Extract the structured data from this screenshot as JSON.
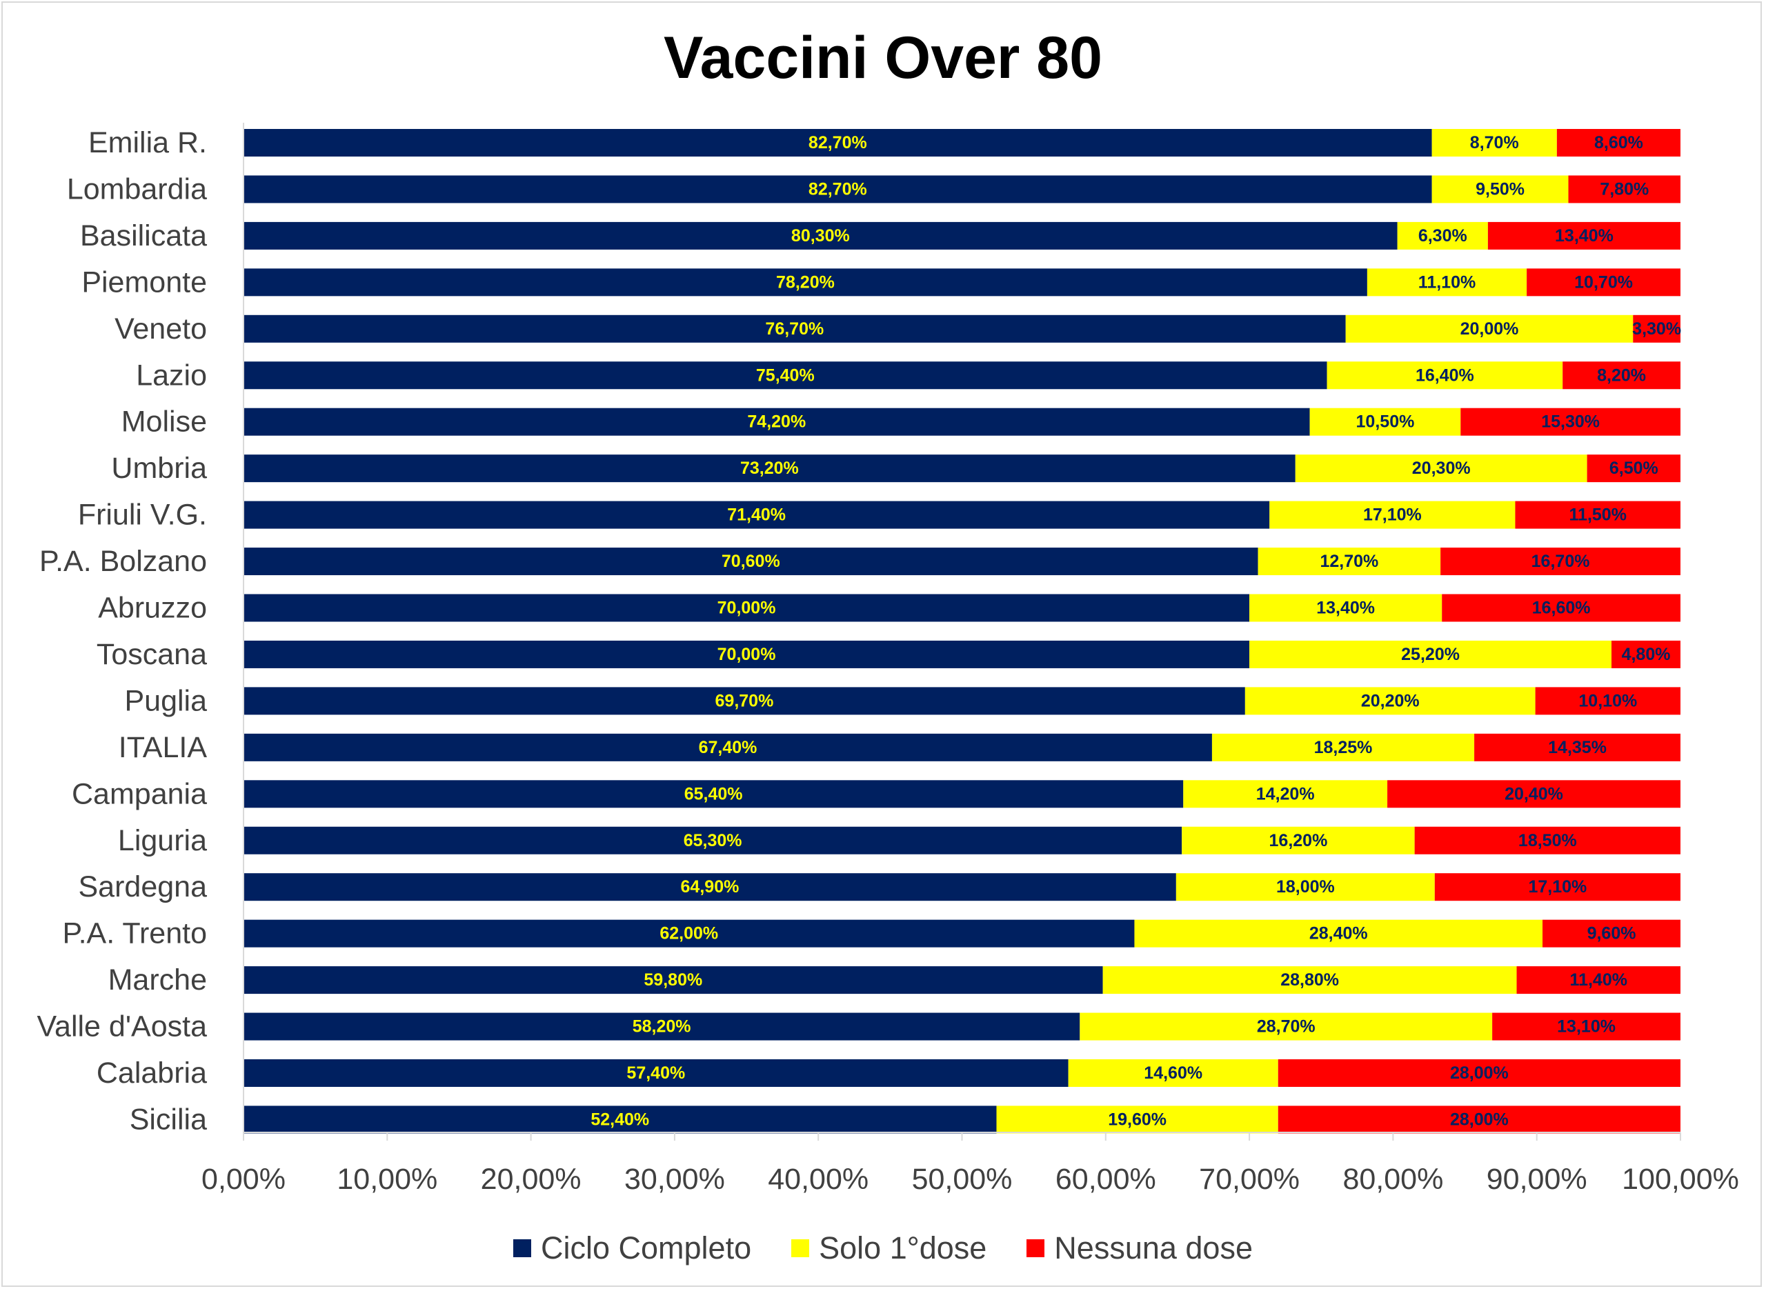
{
  "chart_data": {
    "type": "bar",
    "orientation": "horizontal",
    "stacked": true,
    "title": "Vaccini Over 80",
    "categories": [
      "Emilia R.",
      "Lombardia",
      "Basilicata",
      "Piemonte",
      "Veneto",
      "Lazio",
      "Molise",
      "Umbria",
      "Friuli V.G.",
      "P.A. Bolzano",
      "Abruzzo",
      "Toscana",
      "Puglia",
      "ITALIA",
      "Campania",
      "Liguria",
      "Sardegna",
      "P.A. Trento",
      "Marche",
      "Valle d'Aosta",
      "Calabria",
      "Sicilia"
    ],
    "series": [
      {
        "name": "Ciclo Completo",
        "color": "#002060",
        "label_color": "#ffff00",
        "values": [
          82.7,
          82.7,
          80.3,
          78.2,
          76.7,
          75.4,
          74.2,
          73.2,
          71.4,
          70.6,
          70.0,
          70.0,
          69.7,
          67.4,
          65.4,
          65.3,
          64.9,
          62.0,
          59.8,
          58.2,
          57.4,
          52.4
        ],
        "labels": [
          "82,70%",
          "82,70%",
          "80,30%",
          "78,20%",
          "76,70%",
          "75,40%",
          "74,20%",
          "73,20%",
          "71,40%",
          "70,60%",
          "70,00%",
          "70,00%",
          "69,70%",
          "67,40%",
          "65,40%",
          "65,30%",
          "64,90%",
          "62,00%",
          "59,80%",
          "58,20%",
          "57,40%",
          "52,40%"
        ]
      },
      {
        "name": "Solo 1°dose",
        "color": "#ffff00",
        "label_color": "#002060",
        "values": [
          8.7,
          9.5,
          6.3,
          11.1,
          20.0,
          16.4,
          10.5,
          20.3,
          17.1,
          12.7,
          13.4,
          25.2,
          20.2,
          18.25,
          14.2,
          16.2,
          18.0,
          28.4,
          28.8,
          28.7,
          14.6,
          19.6
        ],
        "labels": [
          "8,70%",
          "9,50%",
          "6,30%",
          "11,10%",
          "20,00%",
          "16,40%",
          "10,50%",
          "20,30%",
          "17,10%",
          "12,70%",
          "13,40%",
          "25,20%",
          "20,20%",
          "18,25%",
          "14,20%",
          "16,20%",
          "18,00%",
          "28,40%",
          "28,80%",
          "28,70%",
          "14,60%",
          "19,60%"
        ]
      },
      {
        "name": "Nessuna dose",
        "color": "#ff0000",
        "label_color": "#002060",
        "values": [
          8.6,
          7.8,
          13.4,
          10.7,
          3.3,
          8.2,
          15.3,
          6.5,
          11.5,
          16.7,
          16.6,
          4.8,
          10.1,
          14.35,
          20.4,
          18.5,
          17.1,
          9.6,
          11.4,
          13.1,
          28.0,
          28.0
        ],
        "labels": [
          "8,60%",
          "7,80%",
          "13,40%",
          "10,70%",
          "3,30%",
          "8,20%",
          "15,30%",
          "6,50%",
          "11,50%",
          "16,70%",
          "16,60%",
          "4,80%",
          "10,10%",
          "14,35%",
          "20,40%",
          "18,50%",
          "17,10%",
          "9,60%",
          "11,40%",
          "13,10%",
          "28,00%",
          "28,00%"
        ]
      }
    ],
    "xlim": [
      0,
      100
    ],
    "x_ticks": [
      0,
      10,
      20,
      30,
      40,
      50,
      60,
      70,
      80,
      90,
      100
    ],
    "x_tick_labels": [
      "0,00%",
      "10,00%",
      "20,00%",
      "30,00%",
      "40,00%",
      "50,00%",
      "60,00%",
      "70,00%",
      "80,00%",
      "90,00%",
      "100,00%"
    ],
    "grid": false,
    "legend_position": "bottom"
  }
}
